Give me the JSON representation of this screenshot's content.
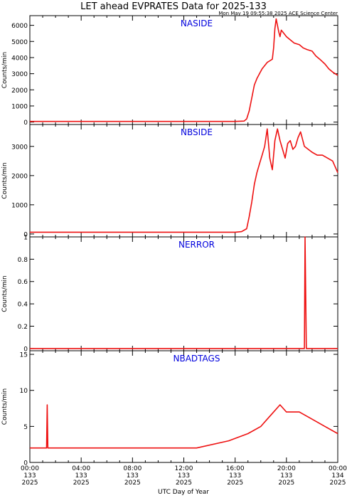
{
  "title": "LET ahead EVPRATES Data for 2025-133",
  "timestamp": "Mon May 19 09:55:38 2025 ACE Science Center",
  "xlabel": "UTC Day of Year",
  "x_ticks": [
    {
      "time": "00:00",
      "doy": "133",
      "year": "2025"
    },
    {
      "time": "04:00",
      "doy": "133",
      "year": "2025"
    },
    {
      "time": "08:00",
      "doy": "133",
      "year": "2025"
    },
    {
      "time": "12:00",
      "doy": "133",
      "year": "2025"
    },
    {
      "time": "16:00",
      "doy": "133",
      "year": "2025"
    },
    {
      "time": "20:00",
      "doy": "133",
      "year": "2025"
    },
    {
      "time": "00:00",
      "doy": "134",
      "year": "2025"
    }
  ],
  "colors": {
    "line": "#ee1111",
    "panel_title": "#0000dd",
    "axis": "#000000"
  },
  "chart_data": [
    {
      "type": "line",
      "title": "NASIDE",
      "ylabel": "Counts/min",
      "x_unit": "hours UTC, day 133",
      "xlim": [
        0,
        24
      ],
      "ylim": [
        -150,
        6600
      ],
      "yticks": [
        0,
        1000,
        2000,
        3000,
        4000,
        5000,
        6000
      ],
      "x": [
        0,
        2,
        4,
        6,
        8,
        10,
        12,
        14,
        16,
        16.7,
        16.9,
        17.1,
        17.3,
        17.5,
        17.7,
        17.9,
        18.1,
        18.3,
        18.5,
        18.7,
        18.9,
        19.0,
        19.1,
        19.2,
        19.3,
        19.4,
        19.5,
        19.6,
        19.8,
        20.0,
        20.3,
        20.6,
        21.0,
        21.3,
        21.6,
        22.0,
        22.3,
        22.6,
        23.0,
        23.3,
        23.6,
        24.0
      ],
      "values": [
        40,
        40,
        40,
        40,
        40,
        40,
        40,
        40,
        40,
        60,
        200,
        700,
        1500,
        2300,
        2700,
        3000,
        3300,
        3500,
        3700,
        3800,
        3900,
        4600,
        5800,
        6400,
        6000,
        5600,
        5300,
        5700,
        5500,
        5300,
        5100,
        4900,
        4800,
        4600,
        4500,
        4400,
        4100,
        3900,
        3600,
        3300,
        3100,
        2900
      ]
    },
    {
      "type": "line",
      "title": "NBSIDE",
      "ylabel": "Counts/min",
      "x_unit": "hours UTC, day 133",
      "xlim": [
        0,
        24
      ],
      "ylim": [
        -100,
        3750
      ],
      "yticks": [
        0,
        1000,
        2000,
        3000
      ],
      "x": [
        0,
        2,
        4,
        6,
        8,
        10,
        12,
        14,
        16,
        16.5,
        16.9,
        17.1,
        17.3,
        17.5,
        17.7,
        17.9,
        18.1,
        18.3,
        18.5,
        18.7,
        18.9,
        19.1,
        19.3,
        19.5,
        19.7,
        19.9,
        20.1,
        20.3,
        20.5,
        20.7,
        20.9,
        21.1,
        21.4,
        21.7,
        22.0,
        22.4,
        22.8,
        23.2,
        23.6,
        24.0
      ],
      "values": [
        60,
        60,
        60,
        60,
        60,
        60,
        60,
        60,
        60,
        80,
        180,
        600,
        1100,
        1700,
        2100,
        2400,
        2700,
        3000,
        3600,
        2600,
        2200,
        3200,
        3600,
        3200,
        2900,
        2600,
        3100,
        3200,
        2900,
        3000,
        3300,
        3500,
        3000,
        2900,
        2800,
        2700,
        2700,
        2600,
        2500,
        2100
      ]
    },
    {
      "type": "line",
      "title": "NERROR",
      "ylabel": "Counts/min",
      "x_unit": "hours UTC, day 133",
      "xlim": [
        0,
        24
      ],
      "ylim": [
        -0.02,
        1.0
      ],
      "yticks": [
        0,
        0.2,
        0.4,
        0.6,
        0.8,
        1.0
      ],
      "x": [
        0,
        21.4,
        21.45,
        21.55,
        24
      ],
      "values": [
        0,
        0,
        1.0,
        0,
        0
      ]
    },
    {
      "type": "line",
      "title": "NBADTAGS",
      "ylabel": "Counts/min",
      "x_unit": "hours UTC, day 133",
      "xlim": [
        0,
        24
      ],
      "ylim": [
        0,
        15.5
      ],
      "yticks": [
        0,
        5,
        10,
        15
      ],
      "x": [
        0,
        1.3,
        1.35,
        1.4,
        3.5,
        7,
        10,
        13,
        15.5,
        17,
        18,
        18.5,
        19.5,
        20,
        21,
        22,
        23,
        24
      ],
      "values": [
        2,
        2,
        8,
        2,
        2,
        2,
        2,
        2,
        3,
        4,
        5,
        6,
        8,
        7,
        7,
        6,
        5,
        4
      ]
    }
  ]
}
